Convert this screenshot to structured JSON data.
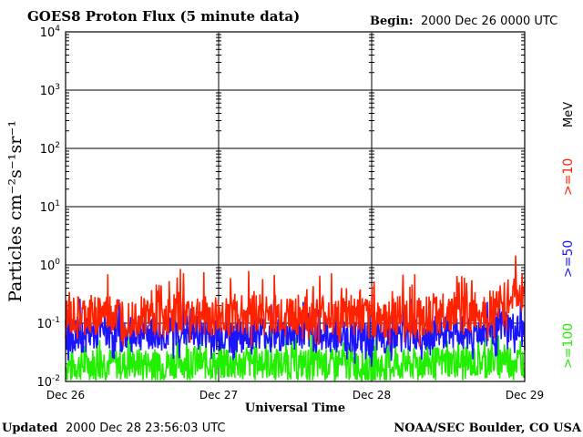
{
  "chart_data": {
    "type": "line",
    "title": "GOES8 Proton Flux (5 minute data)",
    "begin_label": "Begin:",
    "begin_value": "2000 Dec 26 0000 UTC",
    "ylabel": "Particles cm⁻²s⁻¹sr⁻¹",
    "xlabel": "Universal Time",
    "y_scale": "log",
    "ylim": [
      0.01,
      10000
    ],
    "y_ticks": [
      {
        "base": "10",
        "exp": "-2",
        "value": 0.01
      },
      {
        "base": "10",
        "exp": "-1",
        "value": 0.1
      },
      {
        "base": "10",
        "exp": "0",
        "value": 1
      },
      {
        "base": "10",
        "exp": "1",
        "value": 10
      },
      {
        "base": "10",
        "exp": "2",
        "value": 100
      },
      {
        "base": "10",
        "exp": "3",
        "value": 1000
      },
      {
        "base": "10",
        "exp": "4",
        "value": 10000
      }
    ],
    "x_ticks": [
      "Dec 26",
      "Dec 27",
      "Dec 28",
      "Dec 29"
    ],
    "xlim_days": [
      0,
      3
    ],
    "grid": true,
    "legend_position": "right",
    "unit_label": "MeV",
    "series": [
      {
        "name": ">=10",
        "color": "#ff2200",
        "x_days": [
          0,
          0.125,
          0.25,
          0.375,
          0.5,
          0.625,
          0.75,
          0.875,
          1,
          1.125,
          1.25,
          1.375,
          1.5,
          1.625,
          1.75,
          1.875,
          2,
          2.125,
          2.25,
          2.375,
          2.5,
          2.625,
          2.75,
          2.875,
          3
        ],
        "values": [
          0.09,
          0.1,
          0.12,
          0.1,
          0.11,
          0.1,
          0.12,
          0.11,
          0.1,
          0.11,
          0.12,
          0.1,
          0.11,
          0.1,
          0.11,
          0.1,
          0.09,
          0.1,
          0.1,
          0.11,
          0.12,
          0.11,
          0.13,
          0.18,
          0.3
        ]
      },
      {
        "name": ">=50",
        "color": "#1a14ff",
        "x_days": [
          0,
          0.125,
          0.25,
          0.375,
          0.5,
          0.625,
          0.75,
          0.875,
          1,
          1.125,
          1.25,
          1.375,
          1.5,
          1.625,
          1.75,
          1.875,
          2,
          2.125,
          2.25,
          2.375,
          2.5,
          2.625,
          2.75,
          2.875,
          3
        ],
        "values": [
          0.05,
          0.05,
          0.06,
          0.05,
          0.055,
          0.05,
          0.06,
          0.055,
          0.05,
          0.05,
          0.06,
          0.05,
          0.055,
          0.05,
          0.05,
          0.05,
          0.04,
          0.05,
          0.05,
          0.055,
          0.06,
          0.055,
          0.06,
          0.07,
          0.05
        ]
      },
      {
        "name": ">=100",
        "color": "#22ee00",
        "x_days": [
          0,
          0.125,
          0.25,
          0.375,
          0.5,
          0.625,
          0.75,
          0.875,
          1,
          1.125,
          1.25,
          1.375,
          1.5,
          1.625,
          1.75,
          1.875,
          2,
          2.125,
          2.25,
          2.375,
          2.5,
          2.625,
          2.75,
          2.875,
          3
        ],
        "values": [
          0.015,
          0.016,
          0.018,
          0.016,
          0.017,
          0.016,
          0.018,
          0.017,
          0.016,
          0.016,
          0.018,
          0.016,
          0.017,
          0.016,
          0.016,
          0.016,
          0.014,
          0.016,
          0.016,
          0.017,
          0.018,
          0.017,
          0.018,
          0.02,
          0.018
        ]
      }
    ]
  },
  "footer": {
    "updated_label": "Updated",
    "updated_value": "2000 Dec 28 23:56:03 UTC",
    "source": "NOAA/SEC Boulder, CO USA"
  }
}
